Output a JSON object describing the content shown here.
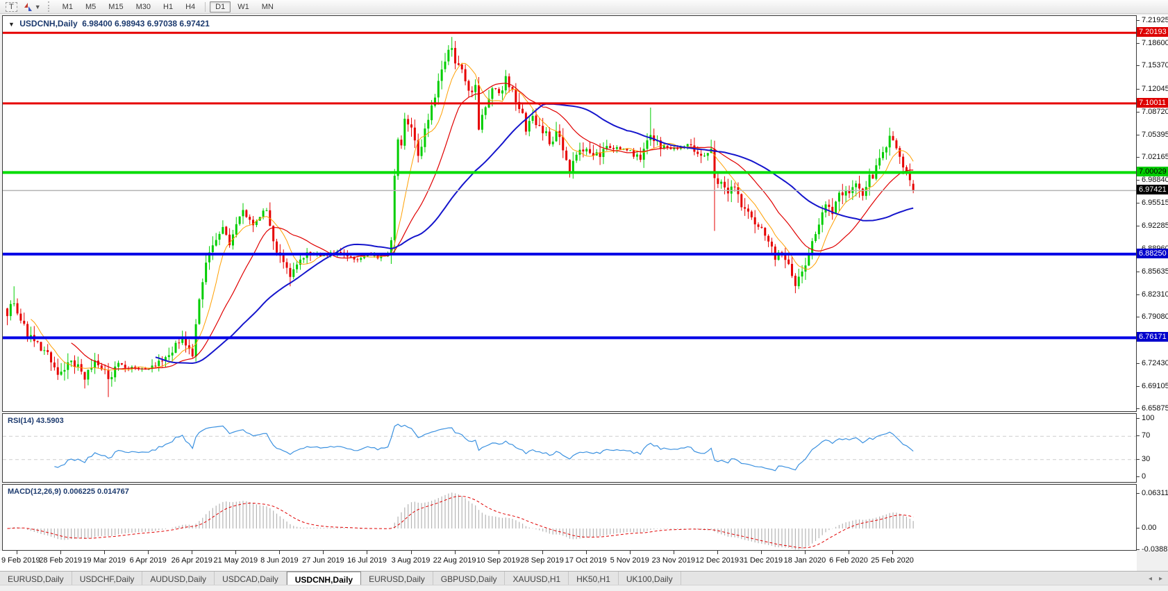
{
  "toolbar": {
    "text_tool_label": "T",
    "timeframes": [
      "M1",
      "M5",
      "M15",
      "M30",
      "H1",
      "H4",
      "D1",
      "W1",
      "MN"
    ],
    "active_timeframe": "D1"
  },
  "chart": {
    "collapse_arrow": "▼",
    "title_symbol": "USDCNH,Daily",
    "title_ohlc": "6.98400 6.98943 6.97038 6.97421"
  },
  "indicators": {
    "rsi_label": "RSI(14) 43.5903",
    "macd_label": "MACD(12,26,9) 0.006225 0.014767"
  },
  "tabs": {
    "items": [
      "EURUSD,Daily",
      "USDCHF,Daily",
      "AUDUSD,Daily",
      "USDCAD,Daily",
      "USDCNH,Daily",
      "EURUSD,Daily",
      "GBPUSD,Daily",
      "XAUUSD,H1",
      "HK50,H1",
      "UK100,Daily"
    ],
    "active_index": 4,
    "scroll_left_icon": "◂",
    "scroll_right_icon": "▸"
  },
  "chart_data": {
    "type": "candlestick",
    "symbol": "USDCNH",
    "timeframe": "Daily",
    "ohlc_display": {
      "open": 6.984,
      "high": 6.98943,
      "low": 6.97038,
      "close": 6.97421
    },
    "price_range": {
      "top": 7.21925,
      "bottom": 6.65875
    },
    "price_axis_ticks": [
      "7.21925",
      "7.18600",
      "7.15370",
      "7.12045",
      "7.08720",
      "7.05395",
      "7.02165",
      "6.98840",
      "6.95515",
      "6.92285",
      "6.88960",
      "6.85635",
      "6.82310",
      "6.79080",
      "6.75755",
      "6.72430",
      "6.69105",
      "6.65875"
    ],
    "hlines": [
      {
        "label": "7.20193",
        "price": 7.20193,
        "color": "#e60000",
        "width": 3,
        "badge_bg": "#dd0000",
        "badge_fg": "#ffffff"
      },
      {
        "label": "7.10011",
        "price": 7.10011,
        "color": "#e60000",
        "width": 3,
        "badge_bg": "#dd0000",
        "badge_fg": "#ffffff"
      },
      {
        "label": "7.00029",
        "price": 7.00029,
        "color": "#00dd00",
        "width": 4,
        "badge_bg": "#00cc00",
        "badge_fg": "#000000"
      },
      {
        "label": "6.88250",
        "price": 6.8825,
        "color": "#0000e6",
        "width": 4,
        "badge_bg": "#0000cc",
        "badge_fg": "#ffffff"
      },
      {
        "label": "6.76171",
        "price": 6.76171,
        "color": "#0000e6",
        "width": 4,
        "badge_bg": "#0000cc",
        "badge_fg": "#ffffff"
      }
    ],
    "current_price": {
      "label": "6.97421",
      "value": 6.97421,
      "line_color": "#b3b3b3",
      "badge_bg": "#000000",
      "badge_fg": "#ffffff"
    },
    "date_labels": [
      "9 Feb 2019",
      "28 Feb 2019",
      "19 Mar 2019",
      "6 Apr 2019",
      "26 Apr 2019",
      "21 May 2019",
      "8 Jun 2019",
      "27 Jun 2019",
      "16 Jul 2019",
      "3 Aug 2019",
      "22 Aug 2019",
      "10 Sep 2019",
      "28 Sep 2019",
      "17 Oct 2019",
      "5 Nov 2019",
      "23 Nov 2019",
      "12 Dec 2019",
      "31 Dec 2019",
      "18 Jan 2020",
      "6 Feb 2020",
      "25 Feb 2020"
    ],
    "candle_count": 270,
    "candle_colors": {
      "bull": "#00cd00",
      "bear": "#e60000"
    },
    "close_path_anchors": [
      [
        0,
        6.8
      ],
      [
        2,
        6.815
      ],
      [
        5,
        6.775
      ],
      [
        8,
        6.755
      ],
      [
        12,
        6.735
      ],
      [
        16,
        6.708
      ],
      [
        19,
        6.728
      ],
      [
        23,
        6.705
      ],
      [
        26,
        6.722
      ],
      [
        29,
        6.712
      ],
      [
        30,
        6.695
      ],
      [
        33,
        6.725
      ],
      [
        37,
        6.718
      ],
      [
        42,
        6.715
      ],
      [
        46,
        6.728
      ],
      [
        50,
        6.748
      ],
      [
        52,
        6.756
      ],
      [
        55,
        6.738
      ],
      [
        56,
        6.778
      ],
      [
        58,
        6.845
      ],
      [
        60,
        6.885
      ],
      [
        62,
        6.91
      ],
      [
        64,
        6.925
      ],
      [
        66,
        6.897
      ],
      [
        68,
        6.925
      ],
      [
        70,
        6.943
      ],
      [
        72,
        6.925
      ],
      [
        75,
        6.94
      ],
      [
        77,
        6.944
      ],
      [
        79,
        6.9
      ],
      [
        81,
        6.876
      ],
      [
        84,
        6.852
      ],
      [
        87,
        6.87
      ],
      [
        90,
        6.884
      ],
      [
        94,
        6.88
      ],
      [
        98,
        6.885
      ],
      [
        102,
        6.875
      ],
      [
        107,
        6.88
      ],
      [
        110,
        6.877
      ],
      [
        113,
        6.882
      ],
      [
        114,
        6.905
      ],
      [
        115,
        6.99
      ],
      [
        116,
        7.055
      ],
      [
        117,
        7.04
      ],
      [
        118,
        7.085
      ],
      [
        120,
        7.06
      ],
      [
        122,
        7.02
      ],
      [
        124,
        7.06
      ],
      [
        126,
        7.1
      ],
      [
        128,
        7.13
      ],
      [
        130,
        7.16
      ],
      [
        132,
        7.183
      ],
      [
        133,
        7.16
      ],
      [
        135,
        7.145
      ],
      [
        137,
        7.112
      ],
      [
        139,
        7.128
      ],
      [
        140,
        7.068
      ],
      [
        142,
        7.09
      ],
      [
        144,
        7.12
      ],
      [
        146,
        7.114
      ],
      [
        148,
        7.133
      ],
      [
        150,
        7.118
      ],
      [
        152,
        7.098
      ],
      [
        154,
        7.063
      ],
      [
        156,
        7.078
      ],
      [
        159,
        7.063
      ],
      [
        161,
        7.043
      ],
      [
        163,
        7.058
      ],
      [
        165,
        7.033
      ],
      [
        167,
        7.008
      ],
      [
        169,
        7.028
      ],
      [
        172,
        7.04
      ],
      [
        175,
        7.024
      ],
      [
        178,
        7.04
      ],
      [
        181,
        7.034
      ],
      [
        185,
        7.033
      ],
      [
        188,
        7.02
      ],
      [
        191,
        7.052
      ],
      [
        194,
        7.038
      ],
      [
        198,
        7.034
      ],
      [
        202,
        7.04
      ],
      [
        205,
        7.02
      ],
      [
        208,
        7.034
      ],
      [
        209,
        7.028
      ],
      [
        210,
        6.99
      ],
      [
        212,
        6.985
      ],
      [
        214,
        6.968
      ],
      [
        216,
        6.98
      ],
      [
        218,
        6.955
      ],
      [
        220,
        6.94
      ],
      [
        222,
        6.92
      ],
      [
        224,
        6.924
      ],
      [
        226,
        6.9
      ],
      [
        228,
        6.88
      ],
      [
        230,
        6.884
      ],
      [
        232,
        6.862
      ],
      [
        234,
        6.843
      ],
      [
        236,
        6.856
      ],
      [
        237,
        6.87
      ],
      [
        239,
        6.9
      ],
      [
        241,
        6.93
      ],
      [
        243,
        6.955
      ],
      [
        245,
        6.94
      ],
      [
        247,
        6.965
      ],
      [
        249,
        6.98
      ],
      [
        250,
        6.97
      ],
      [
        252,
        6.984
      ],
      [
        254,
        6.97
      ],
      [
        256,
        6.99
      ],
      [
        258,
        7.005
      ],
      [
        260,
        7.034
      ],
      [
        262,
        7.048
      ],
      [
        264,
        7.04
      ],
      [
        266,
        7.012
      ],
      [
        268,
        6.99
      ],
      [
        269,
        6.97421
      ]
    ],
    "wick_events": [
      {
        "i": 2,
        "high": 6.836
      },
      {
        "i": 30,
        "low": 6.676
      },
      {
        "i": 70,
        "high": 6.956
      },
      {
        "i": 84,
        "low": 6.836
      },
      {
        "i": 115,
        "low": 6.884
      },
      {
        "i": 132,
        "high": 7.196
      },
      {
        "i": 167,
        "low": 6.993
      },
      {
        "i": 191,
        "high": 7.094
      },
      {
        "i": 210,
        "low": 6.916
      },
      {
        "i": 234,
        "low": 6.826
      }
    ],
    "moving_averages": [
      {
        "period": 8,
        "color": "#ff9f00",
        "width": 1
      },
      {
        "period": 20,
        "color": "#e00000",
        "width": 1.2
      },
      {
        "period": 45,
        "color": "#1515cc",
        "width": 2
      }
    ],
    "rsi": {
      "period": 14,
      "current": 43.5903,
      "axis_ticks": [
        "100",
        "70",
        "30",
        "0"
      ],
      "dashed_levels": [
        70,
        30
      ],
      "color": "#3b91e0",
      "level_color": "#cdcdcd"
    },
    "macd": {
      "fast": 12,
      "slow": 26,
      "signal": 9,
      "macd_value": 0.006225,
      "signal_value": 0.014767,
      "axis_ticks": [
        "0.063113",
        "0.00",
        "-0.038872"
      ],
      "histogram_color": "#b4b4b4",
      "signal_color": "#e00000"
    }
  }
}
